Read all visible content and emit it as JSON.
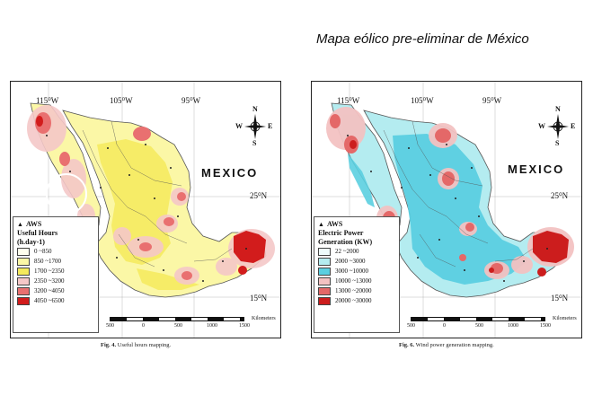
{
  "slide": {
    "title": "Mapa eólico pre-eliminar de México"
  },
  "maps": {
    "left": {
      "lon_labels": [
        "115⁰W",
        "105⁰W",
        "95⁰W"
      ],
      "lat_labels": [
        "25⁰N",
        "15⁰N"
      ],
      "country_label": "MEXICO",
      "compass": {
        "n": "N",
        "s": "S",
        "e": "E",
        "w": "W"
      },
      "legend": {
        "marker": "AWS",
        "title_line1": "Useful Hours",
        "title_line2": "(h.day-1)",
        "items": [
          {
            "label": "0 ~850",
            "color": "#ffffee"
          },
          {
            "label": "850 ~1700",
            "color": "#fbf7a6"
          },
          {
            "label": "1700 ~2350",
            "color": "#f4ea5c"
          },
          {
            "label": "2350 ~3200",
            "color": "#f5c8c8"
          },
          {
            "label": "3200 ~4050",
            "color": "#e97070"
          },
          {
            "label": "4050 ~6500",
            "color": "#d21c1c"
          }
        ]
      },
      "scale": {
        "ticks": [
          "500",
          "0",
          "500",
          "1000",
          "1500"
        ],
        "unit": "Kilometers"
      },
      "caption": {
        "fig": "Fig. 4.",
        "text": "Useful hours mapping."
      }
    },
    "right": {
      "lon_labels": [
        "115⁰W",
        "105⁰W",
        "95⁰W"
      ],
      "lat_labels": [
        "25⁰N",
        "15⁰N"
      ],
      "country_label": "MEXICO",
      "compass": {
        "n": "N",
        "s": "S",
        "e": "E",
        "w": "W"
      },
      "legend": {
        "marker": "AWS",
        "title_line1": "Electric Power",
        "title_line2": "Generation (KW)",
        "items": [
          {
            "label": "22 ~2000",
            "color": "#eefcfc"
          },
          {
            "label": "2000 ~3000",
            "color": "#b4ecf0"
          },
          {
            "label": "3000 ~10000",
            "color": "#5bcfe0"
          },
          {
            "label": "10000 ~13000",
            "color": "#f3c2c2"
          },
          {
            "label": "13000 ~20000",
            "color": "#e46868"
          },
          {
            "label": "20000 ~30000",
            "color": "#cc1d1d"
          }
        ]
      },
      "scale": {
        "ticks": [
          "500",
          "0",
          "500",
          "1000",
          "1500"
        ],
        "unit": "Kilometers"
      },
      "caption": {
        "fig": "Fig. 6.",
        "text": "Wind power generation mapping."
      }
    }
  }
}
